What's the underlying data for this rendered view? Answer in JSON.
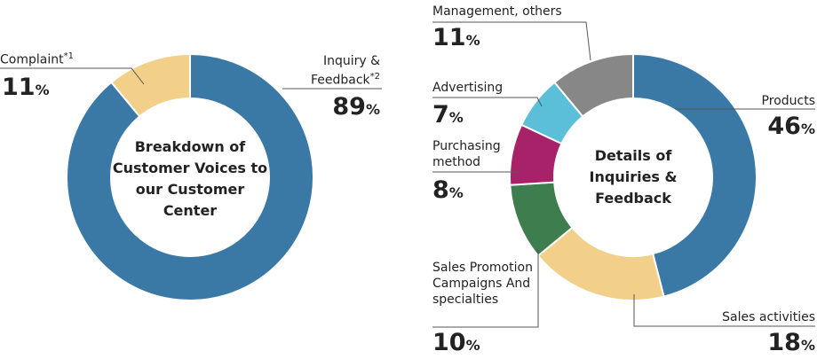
{
  "chart_data": [
    {
      "type": "pie",
      "title": "Breakdown of Customer Voices to our Customer Center",
      "categories": [
        "Inquiry & Feedback",
        "Complaint"
      ],
      "notes": [
        "*2",
        "*1"
      ],
      "values": [
        89,
        11
      ],
      "colors": [
        "#3a78a5",
        "#f2d08a"
      ],
      "unit": "%"
    },
    {
      "type": "pie",
      "title": "Details of Inquiries & Feedback",
      "categories": [
        "Products",
        "Sales activities",
        "Sales Promotion Campaigns And specialties",
        "Purchasing method",
        "Advertising",
        "Management, others"
      ],
      "values": [
        46,
        18,
        10,
        8,
        7,
        11
      ],
      "colors": [
        "#3a78a5",
        "#f2d08a",
        "#3e7d4d",
        "#a8226a",
        "#5bbfd9",
        "#878787"
      ],
      "unit": "%"
    }
  ]
}
